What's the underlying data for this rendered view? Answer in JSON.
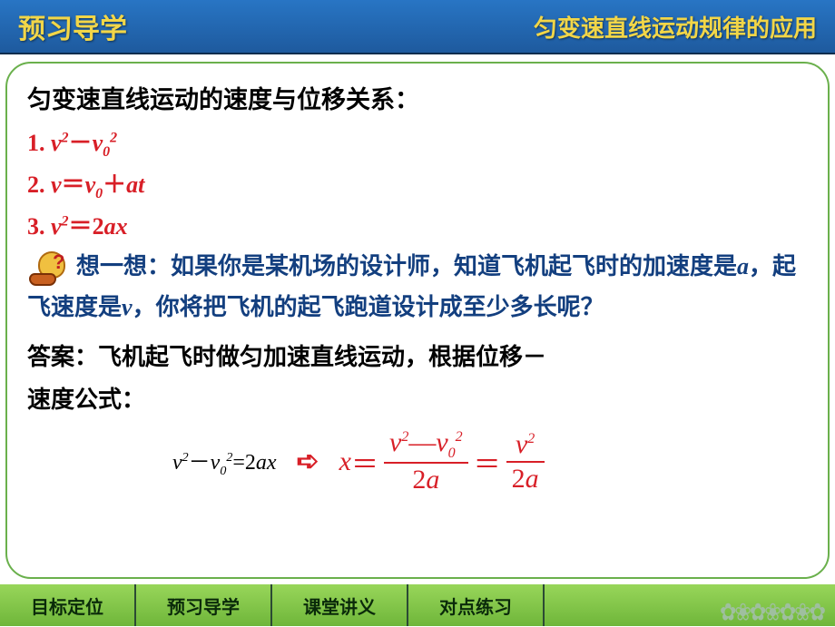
{
  "header": {
    "left": "预习导学",
    "right": "匀变速直线运动规律的应用"
  },
  "heading": "匀变速直线运动的速度与位移关系：",
  "equations": {
    "eq1_prefix": "1. ",
    "eq2_prefix": "2. ",
    "eq3_prefix": "3. ",
    "minus": "－",
    "eq": "＝",
    "plus": "＋",
    "v": "v",
    "v0": "v",
    "sq": "2",
    "zero": "0",
    "a": "a",
    "t": "t",
    "x": "x",
    "two": "2"
  },
  "think": {
    "lead": "想一想：如果你是某机场的设计师，知道飞机起飞时的加速度是",
    "a": "a",
    "mid": "，起飞速度是",
    "v": "v",
    "tail": "，你将把飞机的起飞跑道设计成至少多长呢？"
  },
  "answer": {
    "line1": "答案：飞机起飞时做匀加速直线运动，根据位移－",
    "line2_label": "速度公式："
  },
  "formula": {
    "black": {
      "v": "v",
      "zero": "0",
      "sq": "2",
      "minus": "－",
      "eq": "=",
      "two": "2",
      "a": "a",
      "x": "x"
    },
    "arrow": "➪",
    "red": {
      "x": "x",
      "eq1": "＝",
      "eq2": "＝",
      "v": "v",
      "zero": "0",
      "sq": "2",
      "minus": "—",
      "two": "2",
      "a": "a"
    }
  },
  "nav": {
    "b1": "目标定位",
    "b2": "预习导学",
    "b3": "课堂讲义",
    "b4": "对点练习"
  },
  "colors": {
    "header_grad_top": "#2875c4",
    "header_grad_bot": "#1e5a9e",
    "yellow": "#f2d648",
    "red": "#d81f27",
    "blue_text": "#133f7f",
    "border_green": "#6ab04c",
    "nav_dark": "#10285a",
    "nav_grad_top": "#98d65a",
    "nav_grad_bot": "#6fb63a"
  }
}
